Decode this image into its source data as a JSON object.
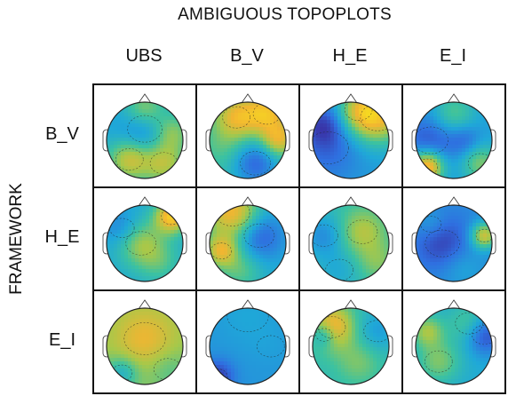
{
  "title": "AMBIGUOUS TOPOPLOTS",
  "y_axis_label": "FRAMEWORK",
  "columns": [
    "UBS",
    "B_V",
    "H_E",
    "E_I"
  ],
  "rows": [
    "B_V",
    "H_E",
    "E_I"
  ],
  "colormap": [
    "#3a2ca0",
    "#2f6fe0",
    "#1fa8d8",
    "#3cc2a0",
    "#a6c84a",
    "#f2b531",
    "#f7e41c"
  ],
  "cells": [
    [
      {
        "base": 0.35,
        "blobs": [
          [
            0.5,
            0.35,
            0.25,
            -0.25
          ],
          [
            0.3,
            0.75,
            0.2,
            0.4
          ],
          [
            0.75,
            0.8,
            0.2,
            0.35
          ],
          [
            0.5,
            0.1,
            0.2,
            0.35
          ],
          [
            0.85,
            0.4,
            0.18,
            0.3
          ]
        ]
      },
      {
        "base": 0.45,
        "blobs": [
          [
            0.6,
            0.8,
            0.22,
            -0.3
          ],
          [
            0.35,
            0.2,
            0.2,
            0.35
          ],
          [
            0.75,
            0.15,
            0.2,
            0.4
          ],
          [
            0.2,
            0.6,
            0.2,
            0.1
          ],
          [
            0.9,
            0.5,
            0.15,
            0.35
          ]
        ]
      },
      {
        "base": 0.3,
        "blobs": [
          [
            0.85,
            0.2,
            0.25,
            0.5
          ],
          [
            0.6,
            0.1,
            0.2,
            0.3
          ],
          [
            0.2,
            0.6,
            0.3,
            -0.15
          ],
          [
            0.15,
            0.3,
            0.18,
            -0.2
          ]
        ]
      },
      {
        "base": 0.3,
        "blobs": [
          [
            0.2,
            0.5,
            0.25,
            -0.2
          ],
          [
            0.15,
            0.85,
            0.15,
            0.65
          ],
          [
            0.85,
            0.8,
            0.18,
            0.3
          ],
          [
            0.5,
            0.15,
            0.2,
            0.25
          ],
          [
            0.65,
            0.5,
            0.15,
            -0.15
          ]
        ]
      }
    ],
    [
      {
        "base": 0.35,
        "blobs": [
          [
            0.45,
            0.5,
            0.22,
            0.3
          ],
          [
            0.85,
            0.15,
            0.15,
            0.55
          ],
          [
            0.2,
            0.3,
            0.18,
            -0.15
          ],
          [
            0.7,
            0.75,
            0.2,
            0.15
          ]
        ]
      },
      {
        "base": 0.35,
        "blobs": [
          [
            0.3,
            0.1,
            0.25,
            0.5
          ],
          [
            0.65,
            0.4,
            0.22,
            -0.25
          ],
          [
            0.15,
            0.6,
            0.15,
            0.4
          ],
          [
            0.4,
            0.85,
            0.2,
            0.2
          ]
        ]
      },
      {
        "base": 0.45,
        "blobs": [
          [
            0.65,
            0.35,
            0.22,
            0.25
          ],
          [
            0.15,
            0.4,
            0.2,
            -0.2
          ],
          [
            0.35,
            0.85,
            0.2,
            -0.1
          ],
          [
            0.85,
            0.75,
            0.18,
            0.15
          ]
        ]
      },
      {
        "base": 0.25,
        "blobs": [
          [
            0.35,
            0.5,
            0.25,
            -0.2
          ],
          [
            0.9,
            0.4,
            0.12,
            0.5
          ],
          [
            0.2,
            0.25,
            0.15,
            0.1
          ],
          [
            0.6,
            0.8,
            0.2,
            0.1
          ]
        ]
      }
    ],
    [
      {
        "base": 0.62,
        "blobs": [
          [
            0.5,
            0.4,
            0.3,
            0.2
          ],
          [
            0.2,
            0.85,
            0.15,
            -0.25
          ],
          [
            0.8,
            0.8,
            0.2,
            -0.1
          ]
        ]
      },
      {
        "base": 0.28,
        "blobs": [
          [
            0.1,
            0.9,
            0.15,
            -0.25
          ],
          [
            0.5,
            0.1,
            0.3,
            0.05
          ],
          [
            0.8,
            0.5,
            0.2,
            0.02
          ]
        ]
      },
      {
        "base": 0.45,
        "blobs": [
          [
            0.25,
            0.25,
            0.2,
            0.45
          ],
          [
            0.85,
            0.3,
            0.2,
            -0.15
          ],
          [
            0.15,
            0.35,
            0.12,
            -0.3
          ],
          [
            0.6,
            0.7,
            0.2,
            0.15
          ]
        ]
      },
      {
        "base": 0.35,
        "blobs": [
          [
            0.9,
            0.35,
            0.18,
            -0.3
          ],
          [
            0.3,
            0.7,
            0.2,
            0.25
          ],
          [
            0.7,
            0.2,
            0.2,
            0.2
          ],
          [
            0.15,
            0.3,
            0.15,
            0.3
          ]
        ]
      }
    ]
  ]
}
